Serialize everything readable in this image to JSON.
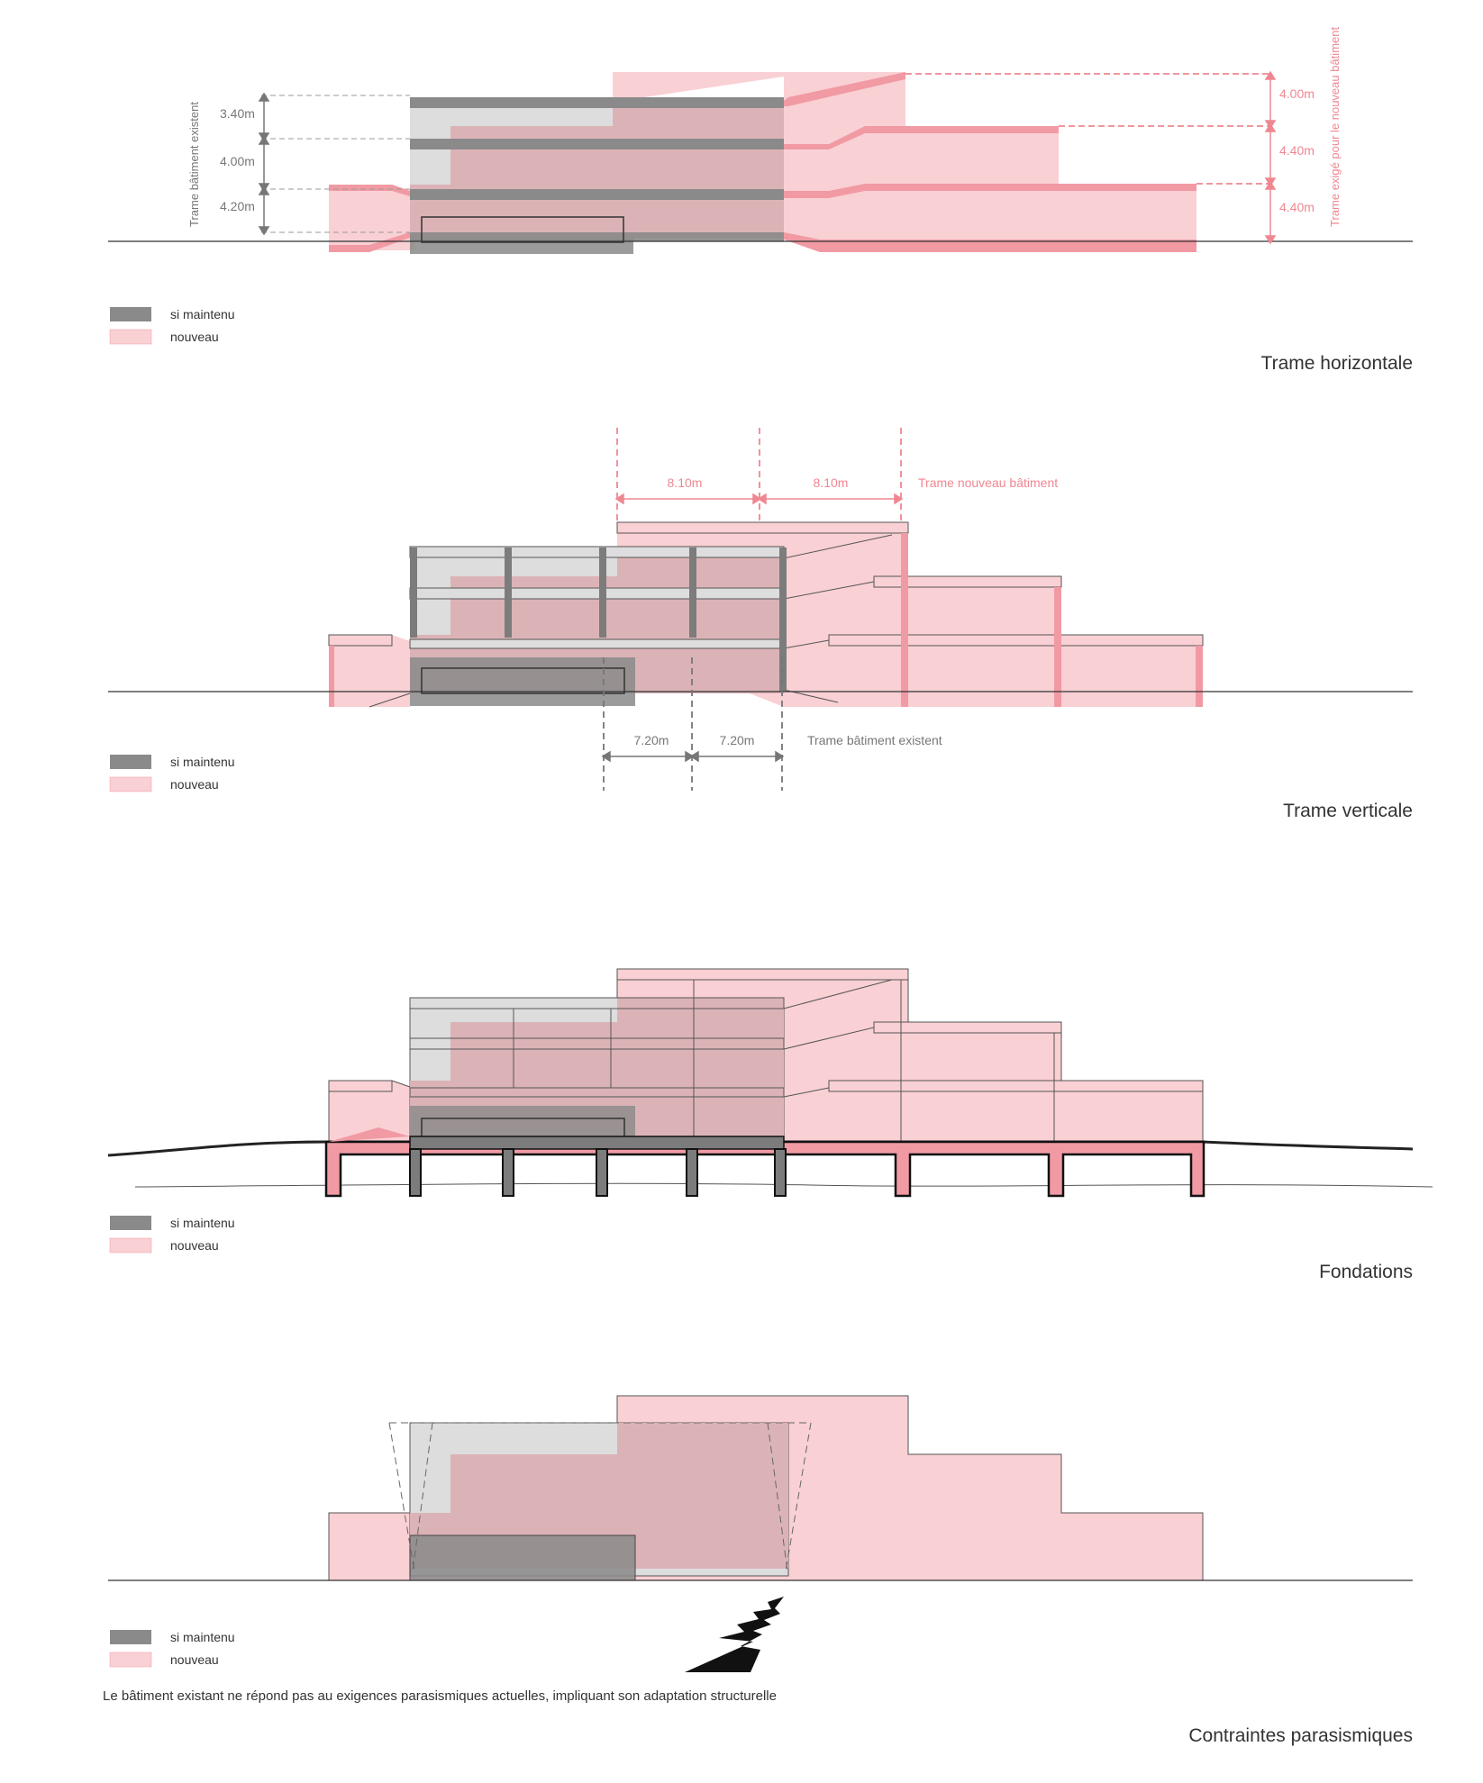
{
  "colors": {
    "existing": "#8a8a8a",
    "existing_light": "#dddddd",
    "new": "#f9d0d4",
    "new_strong": "#f19aa4",
    "new_text": "#ef8791",
    "overlap": "#dbb3b6",
    "ground": "#333333"
  },
  "legend": {
    "kept": "si maintenu",
    "new": "nouveau"
  },
  "panel1": {
    "title": "Trame horizontale",
    "existing_label": "Trame bâtiment existent",
    "new_label": "Trame exigé pour le nouveau bâtiment",
    "existing_heights": [
      "3.40m",
      "4.00m",
      "4.20m"
    ],
    "new_heights": [
      "4.00m",
      "4.40m",
      "4.40m"
    ]
  },
  "panel2": {
    "title": "Trame verticale",
    "new_spans": [
      "8.10m",
      "8.10m"
    ],
    "new_label": "Trame nouveau bâtiment",
    "existing_spans": [
      "7.20m",
      "7.20m"
    ],
    "existing_label": "Trame  bâtiment existent"
  },
  "panel3": {
    "title": "Fondations"
  },
  "panel4": {
    "title": "Contraintes parasismiques",
    "note": "Le bâtiment existant ne répond pas au exigences parasismiques actuelles, impliquant son adaptation structurelle"
  }
}
